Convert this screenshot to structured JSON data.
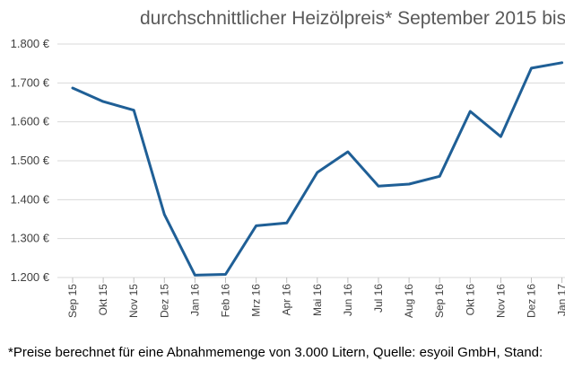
{
  "chart_data": {
    "type": "line",
    "title": "durchschnittlicher Heizölpreis* September 2015 bis",
    "footnote": "*Preise berechnet für eine Abnahmemenge von 3.000 Litern, Quelle: esyoil GmbH, Stand:",
    "x": [
      "Sep 15",
      "Okt 15",
      "Nov 15",
      "Dez 15",
      "Jan 16",
      "Feb 16",
      "Mrz 16",
      "Apr 16",
      "Mai 16",
      "Jun 16",
      "Jul 16",
      "Aug 16",
      "Sep 16",
      "Okt 16",
      "Nov 16",
      "Dez 16",
      "Jan 17"
    ],
    "series": [
      {
        "values": [
          1687,
          1652,
          1630,
          1362,
          1206,
          1208,
          1333,
          1340,
          1470,
          1523,
          1435,
          1440,
          1460,
          1627,
          1562,
          1738,
          1752
        ]
      }
    ],
    "y_ticks": [
      "1.200 €",
      "1.300 €",
      "1.400 €",
      "1.500 €",
      "1.600 €",
      "1.700 €",
      "1.800 €"
    ],
    "y_tick_values": [
      1200,
      1300,
      1400,
      1500,
      1600,
      1700,
      1800
    ],
    "ylim": [
      1200,
      1800
    ],
    "grid": true,
    "line_color": "#1f5f96",
    "grid_color": "#d9d9d9"
  }
}
